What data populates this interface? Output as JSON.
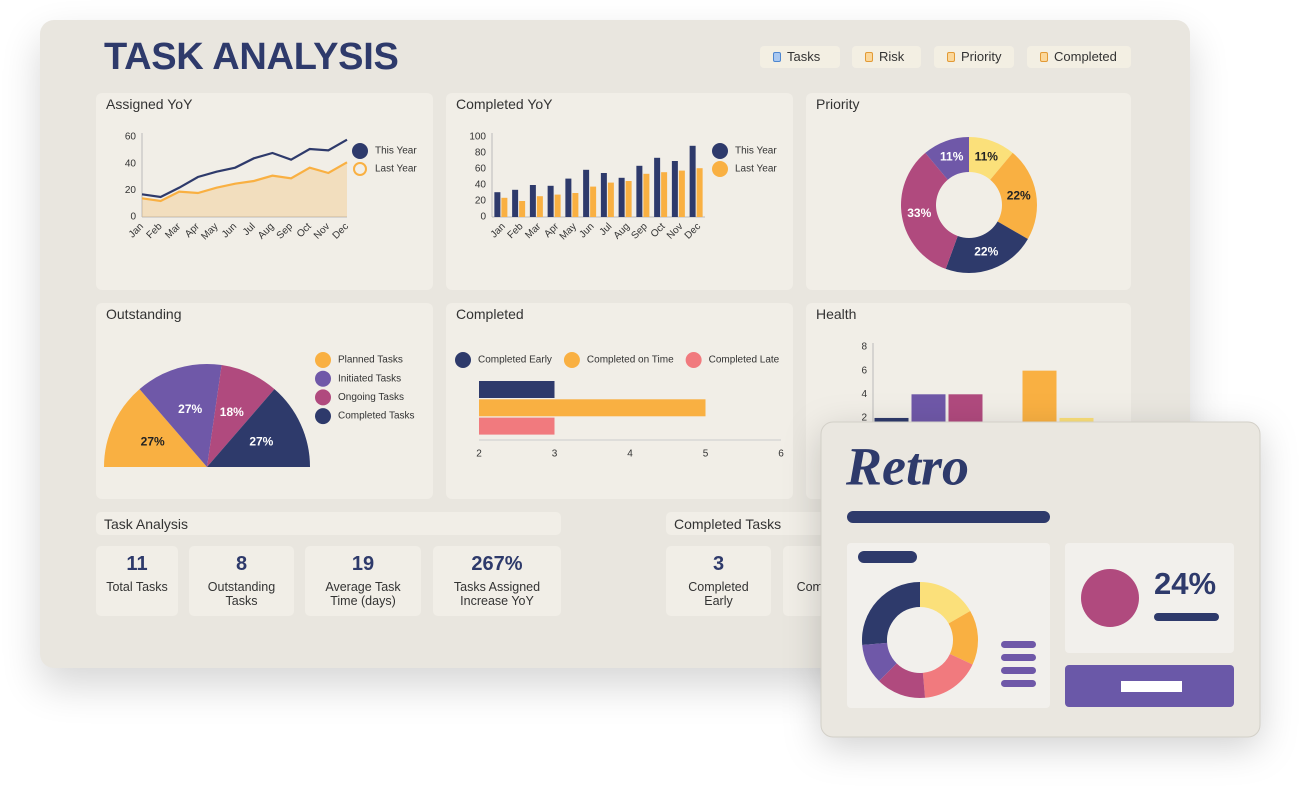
{
  "header": {
    "title": "TASK ANALYSIS",
    "tabs": [
      "Tasks",
      "Risk",
      "Priority",
      "Completed"
    ]
  },
  "chart_data": [
    {
      "type": "line",
      "title": "Assigned YoY",
      "categories": [
        "Jan",
        "Feb",
        "Mar",
        "Apr",
        "May",
        "Jun",
        "Jul",
        "Aug",
        "Sep",
        "Oct",
        "Nov",
        "Dec"
      ],
      "series": [
        {
          "name": "This Year",
          "color": "#2e3a6b",
          "values": [
            17,
            15,
            22,
            30,
            34,
            37,
            44,
            48,
            43,
            51,
            50,
            58
          ]
        },
        {
          "name": "Last Year",
          "color": "#f9b042",
          "area": true,
          "values": [
            14,
            12,
            19,
            18,
            22,
            25,
            27,
            31,
            29,
            37,
            33,
            41
          ]
        }
      ],
      "ylim": [
        0,
        60
      ],
      "yticks": [
        0,
        20,
        40,
        60
      ]
    },
    {
      "type": "bar",
      "title": "Completed YoY",
      "categories": [
        "Jan",
        "Feb",
        "Mar",
        "Apr",
        "May",
        "Jun",
        "Jul",
        "Aug",
        "Sep",
        "Oct",
        "Nov",
        "Dec"
      ],
      "series": [
        {
          "name": "This Year",
          "color": "#2e3a6b",
          "values": [
            31,
            34,
            40,
            39,
            48,
            59,
            55,
            49,
            64,
            74,
            70,
            89
          ]
        },
        {
          "name": "Last Year",
          "color": "#f9b042",
          "values": [
            24,
            20,
            26,
            28,
            30,
            38,
            43,
            45,
            54,
            56,
            58,
            61
          ]
        }
      ],
      "ylim": [
        0,
        100
      ],
      "yticks": [
        0,
        20,
        40,
        60,
        80,
        100
      ]
    },
    {
      "type": "donut",
      "title": "Priority",
      "categories": [
        null,
        null,
        null,
        null,
        null
      ],
      "values": [
        11,
        22,
        22,
        33,
        11
      ],
      "value_labels": [
        "11%",
        "22%",
        "22%",
        "33%",
        "11%"
      ],
      "colors": [
        "#fbe07a",
        "#f9b042",
        "#2e3a6b",
        "#b04a7e",
        "#6f58a8"
      ]
    },
    {
      "type": "pie",
      "half": true,
      "title": "Outstanding",
      "categories": [
        "Planned Tasks",
        "Initiated Tasks",
        "Ongoing Tasks",
        "Completed Tasks"
      ],
      "values": [
        27,
        27,
        18,
        27
      ],
      "value_labels": [
        "27%",
        "27%",
        "18%",
        "27%"
      ],
      "colors": [
        "#f9b042",
        "#6f58a8",
        "#b04a7e",
        "#2e3a6b"
      ]
    },
    {
      "type": "barh",
      "title": "Completed",
      "categories": [
        null
      ],
      "series": [
        {
          "name": "Completed Early",
          "color": "#2e3a6b",
          "values": [
            3
          ]
        },
        {
          "name": "Completed on Time",
          "color": "#f9b042",
          "values": [
            5
          ]
        },
        {
          "name": "Completed Late",
          "color": "#f17a7e",
          "values": [
            3
          ]
        }
      ],
      "xlim": [
        2,
        6
      ],
      "xticks": [
        2,
        3,
        4,
        5,
        6
      ]
    },
    {
      "type": "bar",
      "title": "Health",
      "categories": [
        null,
        null,
        null,
        null,
        null,
        null
      ],
      "values": [
        2,
        4,
        4,
        0,
        6,
        2
      ],
      "colors": [
        "#2e3a6b",
        "#6f58a8",
        "#b04a7e",
        "#f17a7e",
        "#f9b042",
        "#fbe07a"
      ],
      "ylim": [
        0,
        8
      ],
      "yticks": [
        2,
        4,
        6,
        8
      ]
    }
  ],
  "task_analysis": {
    "title": "Task Analysis",
    "cards": [
      {
        "value": "11",
        "label": "Total Tasks"
      },
      {
        "value": "8",
        "label": "Outstanding Tasks"
      },
      {
        "value": "19",
        "label": "Average Task Time (days)"
      },
      {
        "value": "267%",
        "label": "Tasks Assigned Increase YoY"
      }
    ]
  },
  "completed_tasks": {
    "title": "Completed Tasks",
    "cards": [
      {
        "value": "3",
        "label": "Completed Early"
      },
      {
        "label": "Completed on Time"
      }
    ]
  },
  "retro": {
    "title": "Retro",
    "value": "24%"
  }
}
